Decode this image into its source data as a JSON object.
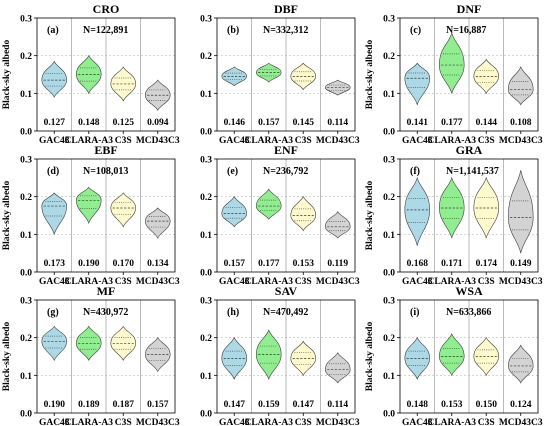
{
  "figure": {
    "ylabel": "Black-sky albedo",
    "categories": [
      "GAC43",
      "CLARA-A3",
      "C3S",
      "MCD43C3"
    ],
    "colors": [
      "#add8e6",
      "#90ee90",
      "#fffacd",
      "#d3d3d3"
    ]
  },
  "chart_data": [
    {
      "type": "violin",
      "title": "CRO",
      "panel": "(a)",
      "n_label": "N=122,891",
      "categories": [
        "GAC43",
        "CLARA-A3",
        "C3S",
        "MCD43C3"
      ],
      "values": [
        0.127,
        0.148,
        0.125,
        0.094
      ],
      "value_labels": [
        "0.127",
        "0.148",
        "0.125",
        "0.094"
      ],
      "medians": [
        0.135,
        0.15,
        0.125,
        0.095
      ],
      "ranges": [
        [
          0.09,
          0.185
        ],
        [
          0.1,
          0.2
        ],
        [
          0.08,
          0.17
        ],
        [
          0.055,
          0.135
        ]
      ],
      "ylim": [
        0,
        0.3
      ],
      "yticks": [
        "0.0",
        "0.1",
        "0.2",
        "0.3"
      ],
      "ylabel": "Black-sky albedo",
      "grid": true
    },
    {
      "type": "violin",
      "title": "DBF",
      "panel": "(b)",
      "n_label": "N=332,312",
      "categories": [
        "GAC43",
        "CLARA-A3",
        "C3S",
        "MCD43C3"
      ],
      "values": [
        0.146,
        0.157,
        0.145,
        0.114
      ],
      "value_labels": [
        "0.146",
        "0.157",
        "0.145",
        "0.114"
      ],
      "medians": [
        0.145,
        0.155,
        0.145,
        0.115
      ],
      "ranges": [
        [
          0.12,
          0.17
        ],
        [
          0.13,
          0.18
        ],
        [
          0.11,
          0.18
        ],
        [
          0.095,
          0.135
        ]
      ],
      "ylim": [
        0,
        0.3
      ],
      "yticks": [
        "0.0",
        "0.1",
        "0.2",
        "0.3"
      ],
      "grid": true
    },
    {
      "type": "violin",
      "title": "DNF",
      "panel": "(c)",
      "n_label": "N=16,887",
      "categories": [
        "GAC43",
        "CLARA-A3",
        "C3S",
        "MCD43C3"
      ],
      "values": [
        0.141,
        0.177,
        0.144,
        0.108
      ],
      "value_labels": [
        "0.141",
        "0.177",
        "0.144",
        "0.108"
      ],
      "medians": [
        0.14,
        0.175,
        0.145,
        0.11
      ],
      "ranges": [
        [
          0.07,
          0.18
        ],
        [
          0.1,
          0.26
        ],
        [
          0.1,
          0.19
        ],
        [
          0.07,
          0.17
        ]
      ],
      "ylim": [
        0,
        0.3
      ],
      "yticks": [
        "0.0",
        "0.1",
        "0.2",
        "0.3"
      ],
      "ylabel": "Black-sky albedo",
      "grid": true
    },
    {
      "type": "violin",
      "title": "EBF",
      "panel": "(d)",
      "n_label": "N=108,013",
      "categories": [
        "GAC43",
        "CLARA-A3",
        "C3S",
        "MCD43C3"
      ],
      "values": [
        0.173,
        0.19,
        0.17,
        0.134
      ],
      "value_labels": [
        "0.173",
        "0.190",
        "0.170",
        "0.134"
      ],
      "medians": [
        0.175,
        0.19,
        0.17,
        0.135
      ],
      "ranges": [
        [
          0.1,
          0.21
        ],
        [
          0.13,
          0.225
        ],
        [
          0.12,
          0.21
        ],
        [
          0.09,
          0.17
        ]
      ],
      "ylim": [
        0,
        0.3
      ],
      "yticks": [
        "0.0",
        "0.1",
        "0.2",
        "0.3"
      ],
      "ylabel": "Black-sky albedo",
      "grid": true
    },
    {
      "type": "violin",
      "title": "ENF",
      "panel": "(e)",
      "n_label": "N=236,792",
      "categories": [
        "GAC43",
        "CLARA-A3",
        "C3S",
        "MCD43C3"
      ],
      "values": [
        0.157,
        0.177,
        0.153,
        0.119
      ],
      "value_labels": [
        "0.157",
        "0.177",
        "0.153",
        "0.119"
      ],
      "medians": [
        0.155,
        0.175,
        0.15,
        0.12
      ],
      "ranges": [
        [
          0.12,
          0.2
        ],
        [
          0.14,
          0.22
        ],
        [
          0.11,
          0.2
        ],
        [
          0.09,
          0.16
        ]
      ],
      "ylim": [
        0,
        0.3
      ],
      "yticks": [
        "0.0",
        "0.1",
        "0.2",
        "0.3"
      ],
      "grid": true
    },
    {
      "type": "violin",
      "title": "GRA",
      "panel": "(f)",
      "n_label": "N=1,141,537",
      "categories": [
        "GAC43",
        "CLARA-A3",
        "C3S",
        "MCD43C3"
      ],
      "values": [
        0.168,
        0.171,
        0.174,
        0.149
      ],
      "value_labels": [
        "0.168",
        "0.171",
        "0.174",
        "0.149"
      ],
      "medians": [
        0.165,
        0.17,
        0.17,
        0.145
      ],
      "ranges": [
        [
          0.07,
          0.25
        ],
        [
          0.09,
          0.25
        ],
        [
          0.09,
          0.25
        ],
        [
          0.05,
          0.27
        ]
      ],
      "ylim": [
        0,
        0.3
      ],
      "yticks": [
        "0.0",
        "0.1",
        "0.2",
        "0.3"
      ],
      "ylabel": "Black-sky albedo",
      "grid": true
    },
    {
      "type": "violin",
      "title": "MF",
      "panel": "(g)",
      "n_label": "N=430,972",
      "categories": [
        "GAC43",
        "CLARA-A3",
        "C3S",
        "MCD43C3"
      ],
      "values": [
        0.19,
        0.189,
        0.187,
        0.157
      ],
      "value_labels": [
        "0.190",
        "0.189",
        "0.187",
        "0.157"
      ],
      "medians": [
        0.19,
        0.185,
        0.185,
        0.155
      ],
      "ranges": [
        [
          0.14,
          0.23
        ],
        [
          0.14,
          0.23
        ],
        [
          0.14,
          0.23
        ],
        [
          0.11,
          0.2
        ]
      ],
      "ylim": [
        0,
        0.3
      ],
      "yticks": [
        "0.0",
        "0.1",
        "0.2",
        "0.3"
      ],
      "ylabel": "Black-sky albedo",
      "grid": true
    },
    {
      "type": "violin",
      "title": "SAV",
      "panel": "(h)",
      "n_label": "N=470,492",
      "categories": [
        "GAC43",
        "CLARA-A3",
        "C3S",
        "MCD43C3"
      ],
      "values": [
        0.147,
        0.159,
        0.147,
        0.114
      ],
      "value_labels": [
        "0.147",
        "0.159",
        "0.147",
        "0.114"
      ],
      "medians": [
        0.145,
        0.155,
        0.145,
        0.115
      ],
      "ranges": [
        [
          0.09,
          0.2
        ],
        [
          0.09,
          0.22
        ],
        [
          0.1,
          0.19
        ],
        [
          0.08,
          0.16
        ]
      ],
      "ylim": [
        0,
        0.3
      ],
      "yticks": [
        "0.0",
        "0.1",
        "0.2",
        "0.3"
      ],
      "grid": true
    },
    {
      "type": "violin",
      "title": "WSA",
      "panel": "(i)",
      "n_label": "N=633,866",
      "categories": [
        "GAC43",
        "CLARA-A3",
        "C3S",
        "MCD43C3"
      ],
      "values": [
        0.148,
        0.153,
        0.15,
        0.124
      ],
      "value_labels": [
        "0.148",
        "0.153",
        "0.150",
        "0.124"
      ],
      "medians": [
        0.145,
        0.15,
        0.15,
        0.125
      ],
      "ranges": [
        [
          0.09,
          0.2
        ],
        [
          0.1,
          0.21
        ],
        [
          0.1,
          0.2
        ],
        [
          0.08,
          0.18
        ]
      ],
      "ylim": [
        0,
        0.3
      ],
      "yticks": [
        "0.0",
        "0.1",
        "0.2",
        "0.3"
      ],
      "ylabel": "Black-sky albedo",
      "grid": true
    }
  ]
}
